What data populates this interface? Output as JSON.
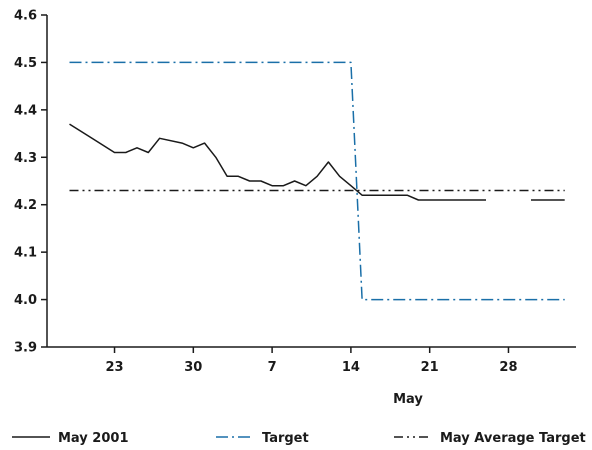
{
  "chart_data": {
    "type": "line",
    "title": "",
    "xlabel": "May",
    "ylabel": "",
    "ylim": [
      3.9,
      4.6
    ],
    "yticks": [
      "3.9",
      "4.0",
      "4.1",
      "4.2",
      "4.3",
      "4.4",
      "4.5",
      "4.6"
    ],
    "xlim": [
      "Apr 17",
      "Jun 3"
    ],
    "xticks": [
      {
        "date": "Apr 23",
        "label": "23"
      },
      {
        "date": "Apr 30",
        "label": "30"
      },
      {
        "date": "May 7",
        "label": "7"
      },
      {
        "date": "May 14",
        "label": "14"
      },
      {
        "date": "May 21",
        "label": "21"
      },
      {
        "date": "May 28",
        "label": "28"
      }
    ],
    "grid": false,
    "legend_position": "bottom",
    "series": [
      {
        "name": "May 2001",
        "color": "#1a1a1a",
        "style": "solid",
        "segments": [
          [
            [
              "Apr 19",
              4.37
            ],
            [
              "Apr 21",
              4.34
            ],
            [
              "Apr 23",
              4.31
            ],
            [
              "Apr 24",
              4.31
            ],
            [
              "Apr 25",
              4.32
            ],
            [
              "Apr 26",
              4.31
            ],
            [
              "Apr 27",
              4.34
            ],
            [
              "Apr 29",
              4.33
            ],
            [
              "Apr 30",
              4.32
            ],
            [
              "May 1",
              4.33
            ],
            [
              "May 2",
              4.3
            ],
            [
              "May 3",
              4.26
            ],
            [
              "May 4",
              4.26
            ],
            [
              "May 5",
              4.25
            ],
            [
              "May 6",
              4.25
            ],
            [
              "May 7",
              4.24
            ],
            [
              "May 8",
              4.24
            ],
            [
              "May 9",
              4.25
            ],
            [
              "May 10",
              4.24
            ],
            [
              "May 11",
              4.26
            ],
            [
              "May 12",
              4.29
            ],
            [
              "May 13",
              4.26
            ],
            [
              "May 14",
              4.24
            ],
            [
              "May 15",
              4.22
            ],
            [
              "May 17",
              4.22
            ],
            [
              "May 19",
              4.22
            ],
            [
              "May 20",
              4.21
            ],
            [
              "May 22",
              4.21
            ],
            [
              "May 24",
              4.21
            ],
            [
              "May 26",
              4.21
            ]
          ],
          [
            [
              "May 30",
              4.21
            ],
            [
              "Jun 2",
              4.21
            ]
          ]
        ]
      },
      {
        "name": "Target",
        "color": "#1a6fa8",
        "style": "dash-dot",
        "segments": [
          [
            [
              "Apr 19",
              4.5
            ],
            [
              "May 14",
              4.5
            ],
            [
              "May 15",
              4.0
            ],
            [
              "Jun 2",
              4.0
            ]
          ]
        ]
      },
      {
        "name": "May Average Target",
        "color": "#1a1a1a",
        "style": "dash-dot-dot",
        "segments": [
          [
            [
              "Apr 19",
              4.23
            ],
            [
              "Jun 2",
              4.23
            ]
          ]
        ]
      }
    ]
  }
}
